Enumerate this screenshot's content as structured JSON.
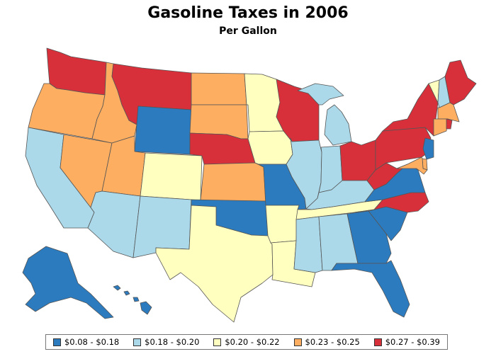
{
  "title": "Gasoline Taxes in 2006",
  "subtitle": "Per Gallon",
  "legend": [
    {
      "key": "c1",
      "label": "$0.08 - $0.18",
      "color": "#2c7bbf"
    },
    {
      "key": "c2",
      "label": "$0.18 - $0.20",
      "color": "#abd9e9"
    },
    {
      "key": "c3",
      "label": "$0.20 - $0.22",
      "color": "#ffffbf"
    },
    {
      "key": "c4",
      "label": "$0.23 - $0.25",
      "color": "#fdae61"
    },
    {
      "key": "c5",
      "label": "$0.27 - $0.39",
      "color": "#d7303a"
    }
  ],
  "states": [
    {
      "id": "WA",
      "cls": "c5"
    },
    {
      "id": "OR",
      "cls": "c4"
    },
    {
      "id": "CA",
      "cls": "c2"
    },
    {
      "id": "NV",
      "cls": "c4"
    },
    {
      "id": "ID",
      "cls": "c4"
    },
    {
      "id": "MT",
      "cls": "c5"
    },
    {
      "id": "WY",
      "cls": "c1"
    },
    {
      "id": "UT",
      "cls": "c4"
    },
    {
      "id": "AZ",
      "cls": "c2"
    },
    {
      "id": "CO",
      "cls": "c3"
    },
    {
      "id": "NM",
      "cls": "c2"
    },
    {
      "id": "ND",
      "cls": "c4"
    },
    {
      "id": "SD",
      "cls": "c4"
    },
    {
      "id": "NE",
      "cls": "c5"
    },
    {
      "id": "KS",
      "cls": "c4"
    },
    {
      "id": "OK",
      "cls": "c1"
    },
    {
      "id": "TX",
      "cls": "c3"
    },
    {
      "id": "MN",
      "cls": "c3"
    },
    {
      "id": "IA",
      "cls": "c3"
    },
    {
      "id": "MO",
      "cls": "c1"
    },
    {
      "id": "AR",
      "cls": "c3"
    },
    {
      "id": "LA",
      "cls": "c3"
    },
    {
      "id": "WI",
      "cls": "c5"
    },
    {
      "id": "IL",
      "cls": "c2"
    },
    {
      "id": "MI",
      "cls": "c2"
    },
    {
      "id": "IN",
      "cls": "c2"
    },
    {
      "id": "OH",
      "cls": "c5"
    },
    {
      "id": "KY",
      "cls": "c2"
    },
    {
      "id": "TN",
      "cls": "c3"
    },
    {
      "id": "MS",
      "cls": "c2"
    },
    {
      "id": "AL",
      "cls": "c2"
    },
    {
      "id": "GA",
      "cls": "c1"
    },
    {
      "id": "FL",
      "cls": "c1"
    },
    {
      "id": "SC",
      "cls": "c1"
    },
    {
      "id": "NC",
      "cls": "c5"
    },
    {
      "id": "VA",
      "cls": "c1"
    },
    {
      "id": "WV",
      "cls": "c5"
    },
    {
      "id": "PA",
      "cls": "c5"
    },
    {
      "id": "NY",
      "cls": "c5"
    },
    {
      "id": "VT",
      "cls": "c3"
    },
    {
      "id": "NH",
      "cls": "c2"
    },
    {
      "id": "ME",
      "cls": "c5"
    },
    {
      "id": "MA",
      "cls": "c4"
    },
    {
      "id": "RI",
      "cls": "c5"
    },
    {
      "id": "CT",
      "cls": "c4"
    },
    {
      "id": "NJ",
      "cls": "c1"
    },
    {
      "id": "DE",
      "cls": "c4"
    },
    {
      "id": "MD",
      "cls": "c4"
    },
    {
      "id": "AK",
      "cls": "c1"
    },
    {
      "id": "HI",
      "cls": "c1"
    }
  ]
}
